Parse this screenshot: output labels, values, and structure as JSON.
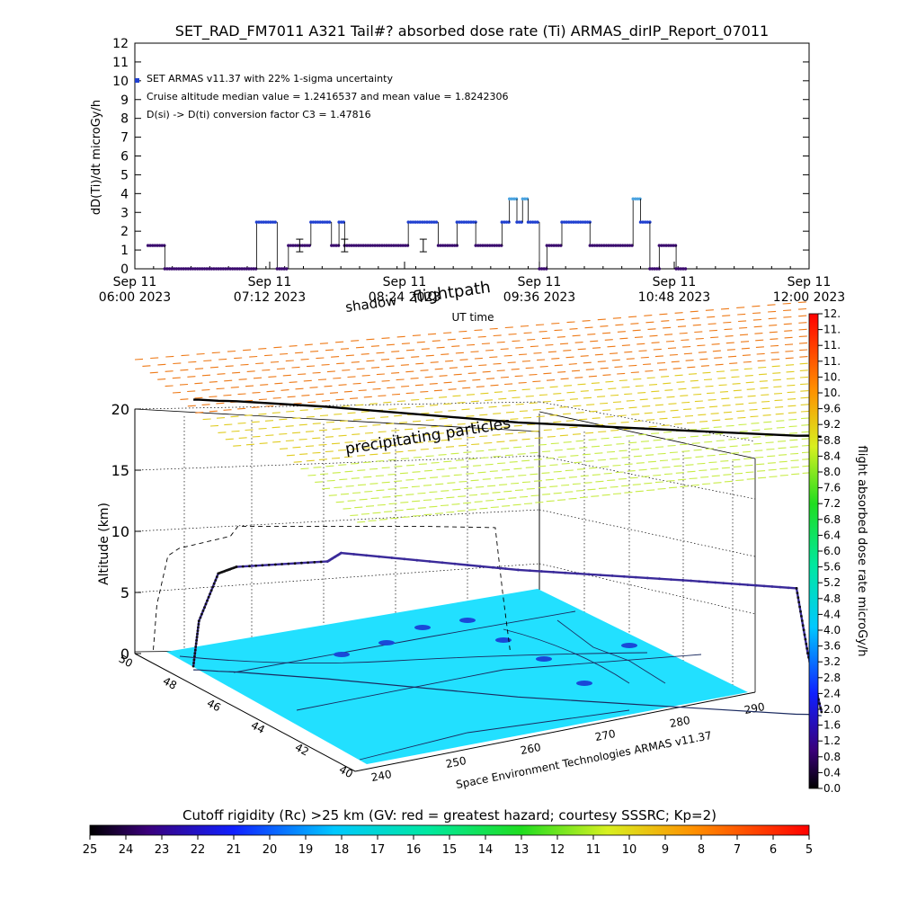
{
  "title": "SET_RAD_FM7011  A321 Tail#? absorbed dose rate (Ti) ARMAS_dirIP_Report_07011",
  "annotations": {
    "line1": "SET ARMAS v11.37 with 22% 1-sigma uncertainty",
    "line2": "Cruise altitude median value = 1.2416537 and mean value = 1.8242306",
    "line3": "D(si) -> D(ti) conversion factor C3 = 1.47816"
  },
  "colors": {
    "low_dose": "#3a0a6e",
    "mid_dose": "#1f3fd0",
    "high_dose": "#4aa3e0",
    "ground": "#22e0ff"
  },
  "chart_data": [
    {
      "type": "scatter",
      "title": "SET_RAD_FM7011  A321 Tail#? absorbed dose rate (Ti) ARMAS_dirIP_Report_07011",
      "ylabel": "dD(Ti)/dt microGy/h",
      "xlabel": "UT time",
      "ylim": [
        0,
        12
      ],
      "yticks": [
        "0",
        "1",
        "2",
        "3",
        "4",
        "5",
        "6",
        "7",
        "8",
        "9",
        "10",
        "11",
        "12"
      ],
      "xtick_labels": [
        {
          "line1": "Sep 11",
          "line2": "06:00 2023"
        },
        {
          "line1": "Sep 11",
          "line2": "07:12 2023"
        },
        {
          "line1": "Sep 11",
          "line2": "08:24 2023"
        },
        {
          "line1": "Sep 11",
          "line2": "09:36 2023"
        },
        {
          "line1": "Sep 11",
          "line2": "10:48 2023"
        },
        {
          "line1": "Sep 11",
          "line2": "12:00 2023"
        }
      ],
      "xlim": [
        "06:00",
        "12:00"
      ],
      "segments": [
        {
          "start": "06:07",
          "end": "06:16",
          "value": 1.24
        },
        {
          "start": "06:16",
          "end": "07:05",
          "value": 0.0
        },
        {
          "start": "07:05",
          "end": "07:16",
          "value": 2.48
        },
        {
          "start": "07:16",
          "end": "07:22",
          "value": 0.0
        },
        {
          "start": "07:22",
          "end": "07:34",
          "value": 1.24
        },
        {
          "start": "07:34",
          "end": "07:45",
          "value": 2.48
        },
        {
          "start": "07:45",
          "end": "07:49",
          "value": 1.24
        },
        {
          "start": "07:49",
          "end": "07:52",
          "value": 2.48
        },
        {
          "start": "07:52",
          "end": "08:26",
          "value": 1.24
        },
        {
          "start": "08:26",
          "end": "08:42",
          "value": 2.48
        },
        {
          "start": "08:42",
          "end": "08:52",
          "value": 1.24
        },
        {
          "start": "08:52",
          "end": "09:02",
          "value": 2.48
        },
        {
          "start": "09:02",
          "end": "09:16",
          "value": 1.24
        },
        {
          "start": "09:16",
          "end": "09:20",
          "value": 2.48
        },
        {
          "start": "09:20",
          "end": "09:24",
          "value": 3.72
        },
        {
          "start": "09:24",
          "end": "09:27",
          "value": 2.48
        },
        {
          "start": "09:27",
          "end": "09:30",
          "value": 3.72
        },
        {
          "start": "09:30",
          "end": "09:36",
          "value": 2.48
        },
        {
          "start": "09:36",
          "end": "09:40",
          "value": 0.0
        },
        {
          "start": "09:40",
          "end": "09:48",
          "value": 1.24
        },
        {
          "start": "09:48",
          "end": "10:03",
          "value": 2.48
        },
        {
          "start": "10:03",
          "end": "10:26",
          "value": 1.24
        },
        {
          "start": "10:26",
          "end": "10:30",
          "value": 3.72
        },
        {
          "start": "10:30",
          "end": "10:35",
          "value": 2.48
        },
        {
          "start": "10:35",
          "end": "10:40",
          "value": 0.0
        },
        {
          "start": "10:40",
          "end": "10:49",
          "value": 1.24
        },
        {
          "start": "10:49",
          "end": "10:55",
          "value": 0.0
        }
      ]
    },
    {
      "type": "scatter",
      "xlabel": "Space Environment Technologies ARMAS v11.37",
      "ylabel": "Altitude (km)",
      "zlim": [
        0,
        20
      ],
      "zticks": [
        "0",
        "5",
        "10",
        "15",
        "20"
      ],
      "lat_ticks": [
        "40",
        "42",
        "44",
        "46",
        "48",
        "50"
      ],
      "lon_ticks": [
        "240",
        "250",
        "260",
        "270",
        "280",
        "290"
      ],
      "labels": {
        "flightpath": "flightpath",
        "shadow": "shadow",
        "precip": "precipitating particles"
      },
      "flight_track": [
        {
          "lon": 237.5,
          "lat": 47.5,
          "alt_km": 0.3
        },
        {
          "lon": 238.0,
          "lat": 47.5,
          "alt_km": 4.0
        },
        {
          "lon": 239.5,
          "lat": 47.3,
          "alt_km": 8.0
        },
        {
          "lon": 241.0,
          "lat": 47.2,
          "alt_km": 8.6
        },
        {
          "lon": 248.0,
          "lat": 46.2,
          "alt_km": 9.6
        },
        {
          "lon": 249.0,
          "lat": 46.0,
          "alt_km": 10.4
        },
        {
          "lon": 262.0,
          "lat": 43.5,
          "alt_km": 10.4
        },
        {
          "lon": 275.0,
          "lat": 42.0,
          "alt_km": 10.4
        },
        {
          "lon": 284.0,
          "lat": 41.0,
          "alt_km": 10.3
        },
        {
          "lon": 285.0,
          "lat": 41.0,
          "alt_km": 5.0
        },
        {
          "lon": 286.0,
          "lat": 40.8,
          "alt_km": 0.3
        }
      ]
    }
  ],
  "colorbar_right": {
    "title": "flight absorbed dose rate microGy/h",
    "ticks": [
      "0.0",
      "0.4",
      "0.8",
      "1.2",
      "1.6",
      "2.0",
      "2.4",
      "2.8",
      "3.2",
      "3.6",
      "4.0",
      "4.4",
      "4.8",
      "5.2",
      "5.6",
      "6.0",
      "6.4",
      "6.8",
      "7.2",
      "7.6",
      "8.0",
      "8.4",
      "8.8",
      "9.2",
      "9.6",
      "10.",
      "10.",
      "11.",
      "11.",
      "11.",
      "12."
    ]
  },
  "colorbar_bottom": {
    "title": "Cutoff rigidity (Rc) >25 km (GV: red = greatest hazard; courtesy SSSRC; Kp=2)",
    "ticks": [
      "25",
      "24",
      "23",
      "22",
      "21",
      "20",
      "19",
      "18",
      "17",
      "16",
      "15",
      "14",
      "13",
      "12",
      "11",
      "10",
      "9",
      "8",
      "7",
      "6",
      "5"
    ]
  }
}
